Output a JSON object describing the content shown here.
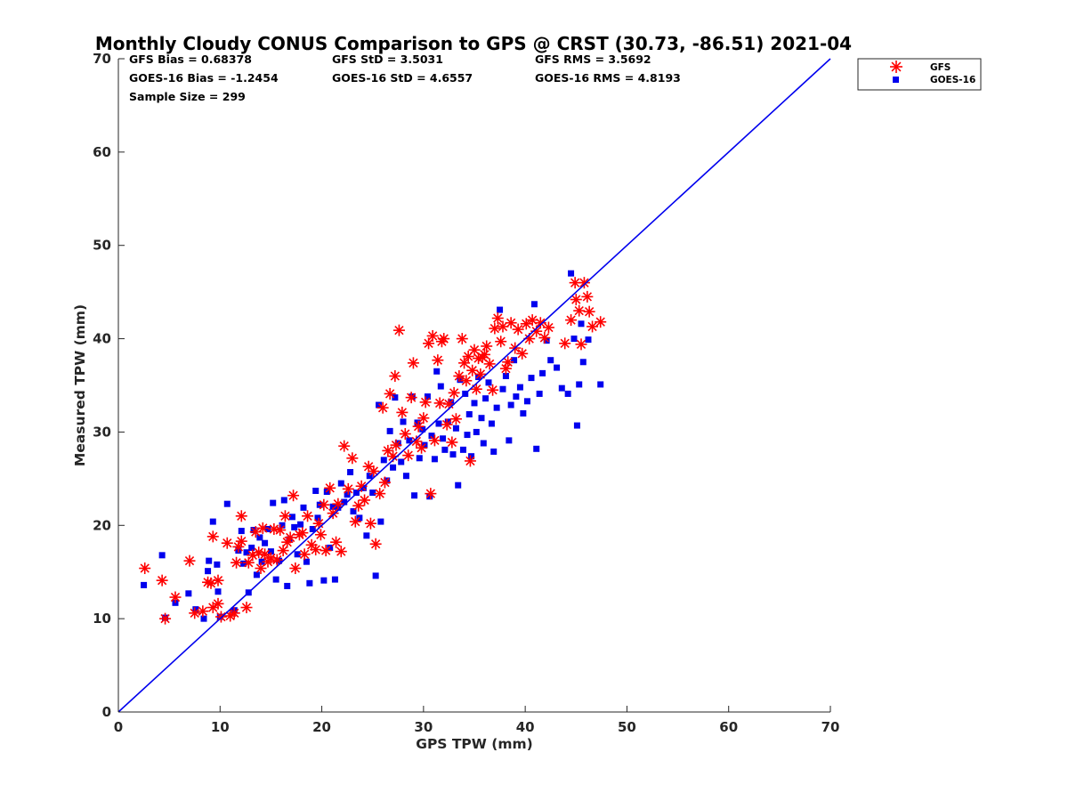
{
  "chart_data": {
    "type": "scatter",
    "title": "Monthly Cloudy CONUS Comparison to GPS @ CRST (30.73, -86.51) 2021-04",
    "xlabel": "GPS TPW (mm)",
    "ylabel": "Measured TPW (mm)",
    "xlim": [
      0,
      70
    ],
    "ylim": [
      0,
      70
    ],
    "xticks": [
      "0",
      "10",
      "20",
      "30",
      "40",
      "50",
      "60",
      "70"
    ],
    "yticks": [
      "0",
      "10",
      "20",
      "30",
      "40",
      "50",
      "60",
      "70"
    ],
    "grid": false,
    "legend_position": "top-right",
    "stats": [
      "GFS Bias = 0.68378",
      "GFS StD = 3.5031",
      "GFS RMS = 3.5692",
      "GOES-16 Bias = -1.2454",
      "GOES-16 StD = 4.6557",
      "GOES-16 RMS = 4.8193",
      "Sample Size = 299"
    ],
    "reference_line": {
      "x": [
        0,
        70
      ],
      "y": [
        0,
        70
      ],
      "color": "#0000ee"
    },
    "series": [
      {
        "name": "GFS",
        "marker": "asterisk",
        "color": "#ff0000",
        "points": [
          [
            2.6,
            15.4
          ],
          [
            4.3,
            14.1
          ],
          [
            4.6,
            10.0
          ],
          [
            5.6,
            12.3
          ],
          [
            7.0,
            16.2
          ],
          [
            7.5,
            10.6
          ],
          [
            8.3,
            10.8
          ],
          [
            8.8,
            13.9
          ],
          [
            9.1,
            13.8
          ],
          [
            9.3,
            18.8
          ],
          [
            9.3,
            11.2
          ],
          [
            9.8,
            11.6
          ],
          [
            9.8,
            14.1
          ],
          [
            10.1,
            10.2
          ],
          [
            10.7,
            18.1
          ],
          [
            11.0,
            10.3
          ],
          [
            11.4,
            10.6
          ],
          [
            11.6,
            16.0
          ],
          [
            11.8,
            17.7
          ],
          [
            12.1,
            18.3
          ],
          [
            12.1,
            21.0
          ],
          [
            12.6,
            11.2
          ],
          [
            12.8,
            16.0
          ],
          [
            13.2,
            16.8
          ],
          [
            13.5,
            19.3
          ],
          [
            13.8,
            17.1
          ],
          [
            14.0,
            15.4
          ],
          [
            14.2,
            19.7
          ],
          [
            14.4,
            16.9
          ],
          [
            14.7,
            16.1
          ],
          [
            15.0,
            16.5
          ],
          [
            15.3,
            19.6
          ],
          [
            15.6,
            16.3
          ],
          [
            15.9,
            19.5
          ],
          [
            16.2,
            17.3
          ],
          [
            16.4,
            21.0
          ],
          [
            16.6,
            18.2
          ],
          [
            16.9,
            18.7
          ],
          [
            17.2,
            23.2
          ],
          [
            17.4,
            15.4
          ],
          [
            17.8,
            19.0
          ],
          [
            18.1,
            19.2
          ],
          [
            18.3,
            16.9
          ],
          [
            18.6,
            21.0
          ],
          [
            19.0,
            17.9
          ],
          [
            19.4,
            17.4
          ],
          [
            19.7,
            20.2
          ],
          [
            19.9,
            19.0
          ],
          [
            20.2,
            22.2
          ],
          [
            20.4,
            17.3
          ],
          [
            20.8,
            24.0
          ],
          [
            21.1,
            21.3
          ],
          [
            21.4,
            18.2
          ],
          [
            21.6,
            22.3
          ],
          [
            21.9,
            17.2
          ],
          [
            22.2,
            28.5
          ],
          [
            22.6,
            23.9
          ],
          [
            23.0,
            27.2
          ],
          [
            23.3,
            20.4
          ],
          [
            23.6,
            22.1
          ],
          [
            23.9,
            24.2
          ],
          [
            24.2,
            22.7
          ],
          [
            24.6,
            26.3
          ],
          [
            24.8,
            20.2
          ],
          [
            25.1,
            25.8
          ],
          [
            25.3,
            18.0
          ],
          [
            25.7,
            23.4
          ],
          [
            26.0,
            32.6
          ],
          [
            26.2,
            24.6
          ],
          [
            26.5,
            28.0
          ],
          [
            26.7,
            34.1
          ],
          [
            27.0,
            27.4
          ],
          [
            27.2,
            36.0
          ],
          [
            27.3,
            28.6
          ],
          [
            27.6,
            40.9
          ],
          [
            27.9,
            32.1
          ],
          [
            28.2,
            29.8
          ],
          [
            28.5,
            27.5
          ],
          [
            28.8,
            33.7
          ],
          [
            29.0,
            37.4
          ],
          [
            29.3,
            29.0
          ],
          [
            29.5,
            30.6
          ],
          [
            29.8,
            28.3
          ],
          [
            30.0,
            31.5
          ],
          [
            30.2,
            33.2
          ],
          [
            30.5,
            39.5
          ],
          [
            30.7,
            23.4
          ],
          [
            30.9,
            40.3
          ],
          [
            31.1,
            29.1
          ],
          [
            31.4,
            37.7
          ],
          [
            31.6,
            33.1
          ],
          [
            31.8,
            39.7
          ],
          [
            32.0,
            40.0
          ],
          [
            32.3,
            30.8
          ],
          [
            32.5,
            33.0
          ],
          [
            32.8,
            28.9
          ],
          [
            33.0,
            34.2
          ],
          [
            33.2,
            31.4
          ],
          [
            33.5,
            36.0
          ],
          [
            33.8,
            40.0
          ],
          [
            34.0,
            37.4
          ],
          [
            34.2,
            35.5
          ],
          [
            34.4,
            38.1
          ],
          [
            34.6,
            26.9
          ],
          [
            34.8,
            36.6
          ],
          [
            35.0,
            38.8
          ],
          [
            35.2,
            34.6
          ],
          [
            35.4,
            37.9
          ],
          [
            35.6,
            36.2
          ],
          [
            35.8,
            38.0
          ],
          [
            36.0,
            38.3
          ],
          [
            36.2,
            39.2
          ],
          [
            36.5,
            37.3
          ],
          [
            36.8,
            34.5
          ],
          [
            37.0,
            41.1
          ],
          [
            37.3,
            42.2
          ],
          [
            37.6,
            39.7
          ],
          [
            37.8,
            41.3
          ],
          [
            38.1,
            36.8
          ],
          [
            38.3,
            37.5
          ],
          [
            38.6,
            41.7
          ],
          [
            39.0,
            39.0
          ],
          [
            39.3,
            41.0
          ],
          [
            39.7,
            38.4
          ],
          [
            40.1,
            41.6
          ],
          [
            40.4,
            40.0
          ],
          [
            40.7,
            42.0
          ],
          [
            41.1,
            40.8
          ],
          [
            41.5,
            41.7
          ],
          [
            41.9,
            40.1
          ],
          [
            42.3,
            41.2
          ],
          [
            43.9,
            39.5
          ],
          [
            44.5,
            42.0
          ],
          [
            44.9,
            46.0
          ],
          [
            45.0,
            44.2
          ],
          [
            45.3,
            43.0
          ],
          [
            45.5,
            39.4
          ],
          [
            45.8,
            46.0
          ],
          [
            46.1,
            44.5
          ],
          [
            46.3,
            42.9
          ],
          [
            46.6,
            41.3
          ],
          [
            47.4,
            41.8
          ]
        ]
      },
      {
        "name": "GOES-16",
        "marker": "square",
        "color": "#0000ee",
        "points": [
          [
            2.5,
            13.6
          ],
          [
            4.3,
            16.8
          ],
          [
            4.6,
            10.1
          ],
          [
            5.6,
            11.7
          ],
          [
            6.9,
            12.7
          ],
          [
            7.6,
            11.0
          ],
          [
            8.4,
            10.0
          ],
          [
            8.8,
            15.1
          ],
          [
            8.9,
            16.2
          ],
          [
            9.3,
            20.4
          ],
          [
            9.7,
            15.8
          ],
          [
            9.8,
            12.9
          ],
          [
            10.0,
            10.2
          ],
          [
            10.7,
            22.3
          ],
          [
            11.4,
            10.9
          ],
          [
            11.8,
            17.3
          ],
          [
            12.1,
            19.4
          ],
          [
            12.3,
            15.9
          ],
          [
            12.6,
            17.1
          ],
          [
            12.8,
            12.8
          ],
          [
            13.1,
            17.6
          ],
          [
            13.3,
            19.5
          ],
          [
            13.6,
            14.7
          ],
          [
            13.9,
            18.7
          ],
          [
            14.1,
            16.1
          ],
          [
            14.4,
            18.1
          ],
          [
            14.7,
            19.6
          ],
          [
            15.0,
            17.2
          ],
          [
            15.2,
            22.4
          ],
          [
            15.5,
            14.2
          ],
          [
            15.8,
            16.2
          ],
          [
            16.1,
            20.0
          ],
          [
            16.3,
            22.7
          ],
          [
            16.6,
            13.5
          ],
          [
            16.8,
            18.5
          ],
          [
            17.1,
            20.9
          ],
          [
            17.3,
            19.8
          ],
          [
            17.6,
            16.9
          ],
          [
            17.9,
            20.1
          ],
          [
            18.2,
            21.9
          ],
          [
            18.5,
            16.1
          ],
          [
            18.8,
            13.8
          ],
          [
            19.1,
            19.6
          ],
          [
            19.4,
            23.7
          ],
          [
            19.6,
            20.8
          ],
          [
            19.8,
            22.2
          ],
          [
            20.2,
            14.1
          ],
          [
            20.5,
            23.6
          ],
          [
            20.8,
            17.6
          ],
          [
            21.1,
            22.0
          ],
          [
            21.3,
            14.2
          ],
          [
            21.6,
            21.9
          ],
          [
            21.9,
            24.5
          ],
          [
            22.2,
            22.5
          ],
          [
            22.5,
            23.3
          ],
          [
            22.8,
            25.7
          ],
          [
            23.1,
            21.5
          ],
          [
            23.4,
            23.5
          ],
          [
            23.7,
            20.8
          ],
          [
            24.1,
            24.0
          ],
          [
            24.4,
            18.9
          ],
          [
            24.7,
            25.3
          ],
          [
            25.0,
            23.5
          ],
          [
            25.3,
            14.6
          ],
          [
            25.6,
            32.9
          ],
          [
            25.8,
            20.4
          ],
          [
            26.1,
            27.0
          ],
          [
            26.4,
            24.8
          ],
          [
            26.7,
            30.1
          ],
          [
            27.0,
            26.2
          ],
          [
            27.2,
            33.7
          ],
          [
            27.5,
            28.8
          ],
          [
            27.8,
            26.8
          ],
          [
            28.0,
            31.1
          ],
          [
            28.3,
            25.3
          ],
          [
            28.6,
            29.1
          ],
          [
            28.9,
            33.8
          ],
          [
            29.1,
            23.2
          ],
          [
            29.4,
            31.0
          ],
          [
            29.6,
            27.2
          ],
          [
            29.9,
            30.3
          ],
          [
            30.1,
            28.6
          ],
          [
            30.4,
            33.8
          ],
          [
            30.6,
            23.1
          ],
          [
            30.8,
            29.6
          ],
          [
            31.1,
            27.1
          ],
          [
            31.3,
            36.5
          ],
          [
            31.5,
            30.9
          ],
          [
            31.7,
            34.9
          ],
          [
            31.9,
            29.3
          ],
          [
            32.1,
            28.1
          ],
          [
            32.4,
            31.1
          ],
          [
            32.7,
            33.2
          ],
          [
            32.9,
            27.6
          ],
          [
            33.2,
            30.4
          ],
          [
            33.4,
            24.3
          ],
          [
            33.6,
            35.6
          ],
          [
            33.9,
            28.1
          ],
          [
            34.1,
            34.1
          ],
          [
            34.3,
            29.7
          ],
          [
            34.5,
            31.9
          ],
          [
            34.7,
            27.4
          ],
          [
            35.0,
            33.1
          ],
          [
            35.2,
            30.0
          ],
          [
            35.4,
            35.9
          ],
          [
            35.7,
            31.5
          ],
          [
            35.9,
            28.8
          ],
          [
            36.1,
            33.6
          ],
          [
            36.4,
            35.3
          ],
          [
            36.7,
            30.9
          ],
          [
            36.9,
            27.9
          ],
          [
            37.2,
            32.6
          ],
          [
            37.5,
            43.1
          ],
          [
            37.8,
            34.6
          ],
          [
            38.1,
            36.0
          ],
          [
            38.4,
            29.1
          ],
          [
            38.6,
            32.9
          ],
          [
            38.9,
            37.7
          ],
          [
            39.1,
            33.8
          ],
          [
            39.5,
            34.8
          ],
          [
            39.8,
            32.0
          ],
          [
            40.2,
            33.3
          ],
          [
            40.6,
            35.8
          ],
          [
            40.9,
            43.7
          ],
          [
            41.1,
            28.2
          ],
          [
            41.4,
            34.1
          ],
          [
            41.7,
            36.3
          ],
          [
            42.1,
            39.8
          ],
          [
            42.5,
            37.7
          ],
          [
            43.1,
            36.9
          ],
          [
            43.6,
            34.7
          ],
          [
            44.2,
            34.1
          ],
          [
            44.5,
            47.0
          ],
          [
            44.8,
            40.0
          ],
          [
            45.1,
            30.7
          ],
          [
            45.3,
            35.1
          ],
          [
            45.5,
            41.6
          ],
          [
            45.7,
            37.5
          ],
          [
            46.2,
            39.9
          ],
          [
            47.4,
            35.1
          ]
        ]
      }
    ]
  }
}
